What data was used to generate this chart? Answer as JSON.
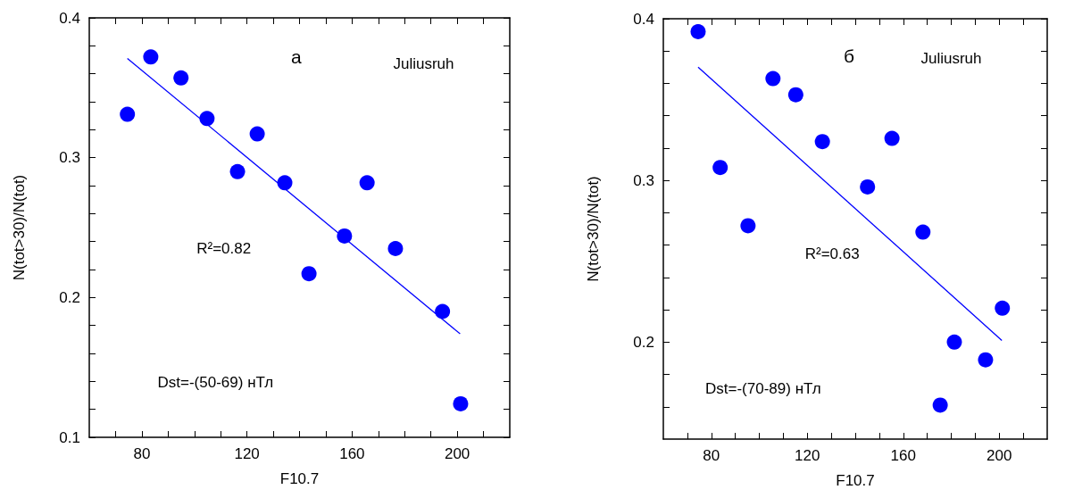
{
  "chart_data": [
    {
      "type": "scatter",
      "title": "а",
      "xlabel": "F10.7",
      "ylabel": "N(tot>30)/N(tot)",
      "annotations": [
        "Juliusruh",
        "R²=0.82",
        "Dst=-(50-69) нТл"
      ],
      "xlim": [
        60,
        220
      ],
      "xticks": [
        {
          "value": 70,
          "label": null
        },
        80,
        {
          "value": 90,
          "label": null
        },
        {
          "value": 100,
          "label": null
        },
        {
          "value": 110,
          "label": null
        },
        120,
        {
          "value": 130,
          "label": null
        },
        {
          "value": 140,
          "label": null
        },
        {
          "value": 150,
          "label": null
        },
        160,
        {
          "value": 170,
          "label": null
        },
        {
          "value": 180,
          "label": null
        },
        {
          "value": 190,
          "label": null
        },
        200,
        {
          "value": 210,
          "label": null
        }
      ],
      "ylim": [
        0.1,
        0.4
      ],
      "yticks": [
        0.1,
        {
          "value": 0.12,
          "label": null
        },
        {
          "value": 0.14,
          "label": null
        },
        {
          "value": 0.16,
          "label": null
        },
        {
          "value": 0.18,
          "label": null
        },
        0.2,
        {
          "value": 0.22,
          "label": null
        },
        {
          "value": 0.24,
          "label": null
        },
        {
          "value": 0.26,
          "label": null
        },
        {
          "value": 0.28,
          "label": null
        },
        0.3,
        {
          "value": 0.32,
          "label": null
        },
        {
          "value": 0.34,
          "label": null
        },
        {
          "value": 0.36,
          "label": null
        },
        {
          "value": 0.38,
          "label": null
        },
        0.4
      ],
      "series": [
        {
          "color": "#0000ff",
          "marker": "circle",
          "x": [
            74.5,
            83.4,
            94.9,
            104.8,
            116.4,
            123.9,
            134.4,
            143.6,
            157.1,
            165.7,
            176.5,
            194.4,
            201.3
          ],
          "values": [
            0.331,
            0.372,
            0.357,
            0.328,
            0.29,
            0.317,
            0.282,
            0.217,
            0.244,
            0.282,
            0.235,
            0.19,
            0.124
          ]
        },
        {
          "type": "line",
          "color": "#0000ff",
          "line_style": "solid",
          "x": [
            74.5,
            201.1
          ],
          "values": [
            0.371,
            0.174
          ]
        }
      ]
    },
    {
      "type": "scatter",
      "title": "б",
      "xlabel": "F10.7",
      "ylabel": "N(tot>30)/N(tot)",
      "annotations": [
        "Juliusruh",
        "R²=0.63",
        "Dst=-(70-89) нТл"
      ],
      "xlim": [
        60,
        220
      ],
      "xticks": [
        {
          "value": 70,
          "label": null
        },
        80,
        {
          "value": 90,
          "label": null
        },
        {
          "value": 100,
          "label": null
        },
        {
          "value": 110,
          "label": null
        },
        120,
        {
          "value": 130,
          "label": null
        },
        {
          "value": 140,
          "label": null
        },
        {
          "value": 150,
          "label": null
        },
        160,
        {
          "value": 170,
          "label": null
        },
        {
          "value": 180,
          "label": null
        },
        {
          "value": 190,
          "label": null
        },
        200,
        {
          "value": 210,
          "label": null
        }
      ],
      "ylim": [
        0.14,
        0.4
      ],
      "yticks": [
        {
          "value": 0.16,
          "label": null
        },
        {
          "value": 0.18,
          "label": null
        },
        0.2,
        {
          "value": 0.22,
          "label": null
        },
        {
          "value": 0.24,
          "label": null
        },
        {
          "value": 0.26,
          "label": null
        },
        {
          "value": 0.28,
          "label": null
        },
        0.3,
        {
          "value": 0.32,
          "label": null
        },
        {
          "value": 0.34,
          "label": null
        },
        {
          "value": 0.36,
          "label": null
        },
        {
          "value": 0.38,
          "label": null
        },
        0.4
      ],
      "series": [
        {
          "color": "#0000ff",
          "marker": "circle",
          "x": [
            74.5,
            83.7,
            95.3,
            105.7,
            115.2,
            126.3,
            145.1,
            155.3,
            168.2,
            175.4,
            181.3,
            194.3,
            201.3
          ],
          "values": [
            0.392,
            0.308,
            0.272,
            0.363,
            0.353,
            0.324,
            0.296,
            0.326,
            0.268,
            0.161,
            0.2,
            0.189,
            0.221
          ]
        },
        {
          "type": "line",
          "color": "#0000ff",
          "line_style": "solid",
          "x": [
            74.5,
            201.1
          ],
          "values": [
            0.37,
            0.201
          ]
        }
      ]
    }
  ]
}
